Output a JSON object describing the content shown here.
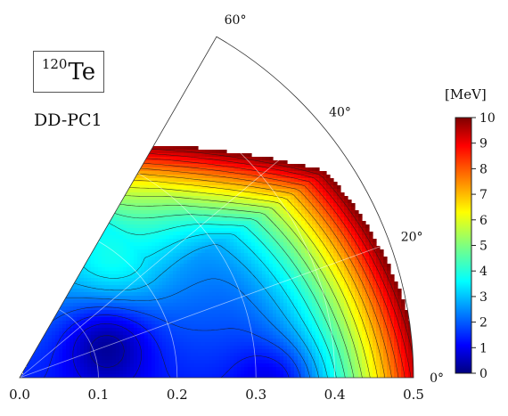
{
  "nucleus": {
    "mass_number": "120",
    "symbol": "Te"
  },
  "functional": "DD-PC1",
  "chart_data": {
    "type": "heatmap",
    "title": "",
    "xlabel": "",
    "ylabel": "",
    "coordinate_system": "beta-gamma polar sector",
    "r_range": [
      0,
      0.5
    ],
    "angle_range_deg": [
      0,
      60
    ],
    "radial_ticks": [
      "0.0",
      "0.1",
      "0.2",
      "0.3",
      "0.4",
      "0.5"
    ],
    "radial_tick_values": [
      0,
      0.1,
      0.2,
      0.3,
      0.4,
      0.5
    ],
    "angle_ticks": [
      "0°",
      "20°",
      "40°",
      "60°"
    ],
    "angle_tick_values": [
      0,
      20,
      40,
      60
    ],
    "grid": true,
    "colorbar": {
      "label": "[MeV]",
      "min": 0,
      "max": 10,
      "ticks": [
        "0",
        "1",
        "2",
        "3",
        "4",
        "5",
        "6",
        "7",
        "8",
        "9",
        "10"
      ],
      "tick_values": [
        0,
        1,
        2,
        3,
        4,
        5,
        6,
        7,
        8,
        9,
        10
      ],
      "colormap": "jet",
      "placement": "right"
    },
    "features": {
      "minimum": {
        "beta": 0.12,
        "gamma_deg": 22,
        "energy": 0
      },
      "secondary_minimum": {
        "beta": 0.33,
        "gamma_deg": 0,
        "energy": 1.5
      },
      "energy_cap": 10
    }
  }
}
